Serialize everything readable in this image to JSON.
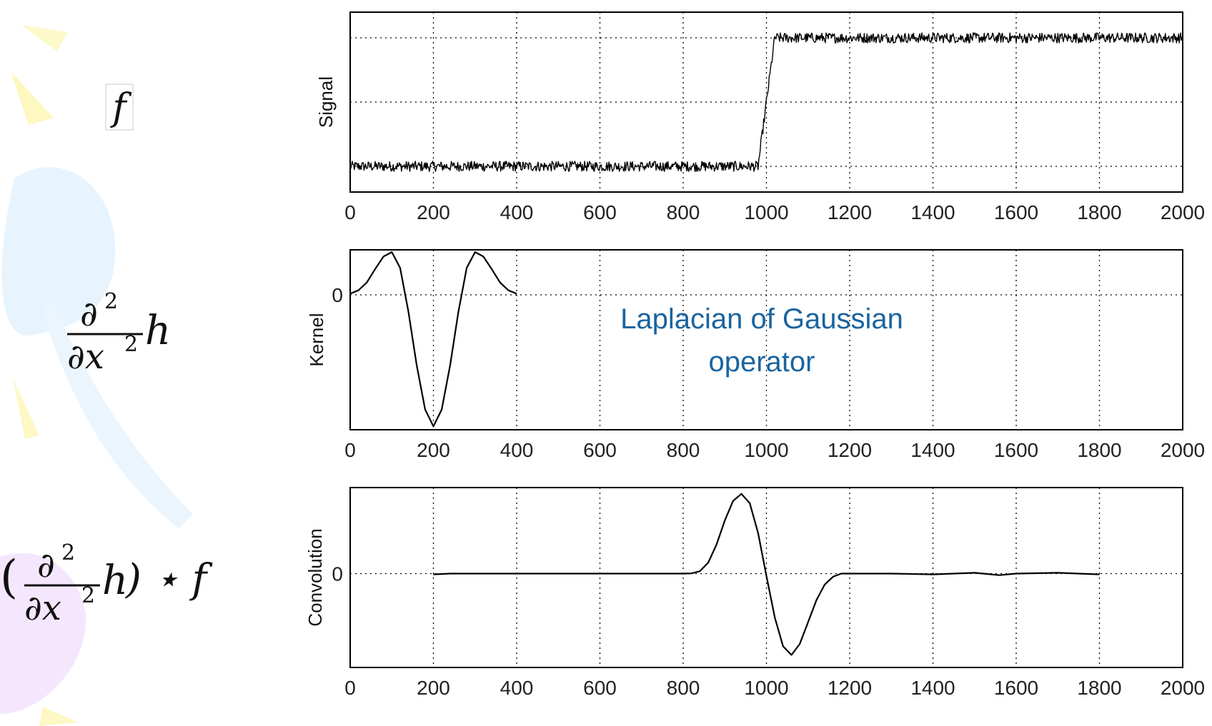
{
  "equations": {
    "f_symbol": "f",
    "partial_top": "∂",
    "partial_sup": "2",
    "partial_bottom": "∂x",
    "bottom_sup": "2",
    "h_symbol": "h",
    "open_paren": "(",
    "close_paren_star": ") ⋆ f"
  },
  "annotation": {
    "line1": "Laplacian of Gaussian",
    "line2": "operator",
    "color": "#1a64a0"
  },
  "colors": {
    "line": "#000000",
    "grid": "#000000",
    "frame": "#000000"
  },
  "chart_data": [
    {
      "type": "line",
      "ylabel": "Signal",
      "xlim": [
        0,
        2000
      ],
      "xticks": [
        "0",
        "200",
        "400",
        "600",
        "800",
        "1000",
        "1200",
        "1400",
        "1600",
        "1800",
        "2000"
      ],
      "yticks": [],
      "ylim": [
        -0.2,
        1.2
      ],
      "grid": true,
      "series": [
        {
          "x": [
            0,
            980,
            1020,
            2000
          ],
          "y": [
            0,
            0,
            1,
            1
          ],
          "noise_amplitude": 0.04
        }
      ]
    },
    {
      "type": "line",
      "ylabel": "Kernel",
      "xlim": [
        0,
        2000
      ],
      "xticks": [
        "0",
        "200",
        "400",
        "600",
        "800",
        "1000",
        "1200",
        "1400",
        "1600",
        "1800",
        "2000"
      ],
      "yticks": [
        "0"
      ],
      "ylim": [
        -1.2,
        0.4
      ],
      "grid": true,
      "series": [
        {
          "x": [
            0,
            20,
            40,
            60,
            80,
            100,
            120,
            140,
            160,
            180,
            200,
            220,
            240,
            260,
            280,
            300,
            320,
            340,
            360,
            380,
            400
          ],
          "y": [
            0.01,
            0.04,
            0.11,
            0.23,
            0.34,
            0.38,
            0.24,
            -0.15,
            -0.63,
            -1.02,
            -1.17,
            -1.02,
            -0.63,
            -0.15,
            0.24,
            0.38,
            0.34,
            0.23,
            0.11,
            0.04,
            0.01
          ]
        }
      ]
    },
    {
      "type": "line",
      "ylabel": "Convolution",
      "xlim": [
        0,
        2000
      ],
      "xticks": [
        "0",
        "200",
        "400",
        "600",
        "800",
        "1000",
        "1200",
        "1400",
        "1600",
        "1800",
        "2000"
      ],
      "yticks": [
        "0"
      ],
      "ylim": [
        -1.2,
        1.1
      ],
      "grid": true,
      "series": [
        {
          "x": [
            200,
            240,
            800,
            820,
            840,
            860,
            880,
            900,
            920,
            940,
            960,
            980,
            1000,
            1020,
            1040,
            1060,
            1080,
            1100,
            1120,
            1140,
            1160,
            1180,
            1200,
            1300,
            1400,
            1500,
            1560,
            1600,
            1700,
            1800
          ],
          "y": [
            -0.01,
            0,
            0,
            0.003,
            0.03,
            0.14,
            0.37,
            0.68,
            0.93,
            1.02,
            0.9,
            0.52,
            -0.03,
            -0.56,
            -0.93,
            -1.04,
            -0.9,
            -0.62,
            -0.34,
            -0.14,
            -0.04,
            0,
            0,
            0,
            -0.01,
            0.01,
            -0.02,
            0,
            0.01,
            -0.01
          ]
        }
      ]
    }
  ]
}
